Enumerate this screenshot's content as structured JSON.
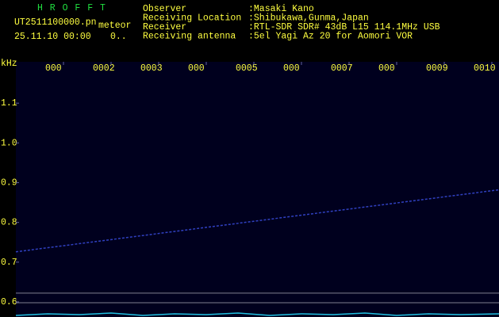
{
  "header": {
    "app": "H R O F F T",
    "file": "UT2511100000.pn",
    "mode": "meteor",
    "time": "25.11.10 00:00",
    "count": "0..",
    "fields": [
      {
        "label": "Observer",
        "value": ":Masaki Kano"
      },
      {
        "label": "Receiving Location",
        "value": ":Shibukawa,Gunma,Japan"
      },
      {
        "label": "Receiver",
        "value": ":RTL-SDR SDR# 43dB L15 114.1MHz USB"
      },
      {
        "label": "Receiving antenna",
        "value": ":5el Yagi Az 20 for Aomori VOR"
      }
    ]
  },
  "chart_data": {
    "type": "spectrogram",
    "y_label": "kHz",
    "ylim": [
      0.562,
      1.204
    ],
    "yticks": [
      0.6,
      0.7,
      0.8,
      0.9,
      {
        "value": 1.0,
        "label": "1.0"
      },
      1.1
    ],
    "xlim": [
      0,
      10.15
    ],
    "xticks": [
      {
        "value": 1,
        "label": "000"
      },
      {
        "value": 2,
        "label": "0002"
      },
      {
        "value": 3,
        "label": "0003"
      },
      {
        "value": 4,
        "label": "000"
      },
      {
        "value": 5,
        "label": "0005"
      },
      {
        "value": 6,
        "label": "000"
      },
      {
        "value": 7,
        "label": "0007"
      },
      {
        "value": 8,
        "label": "000"
      },
      {
        "value": 9,
        "label": "0009"
      },
      {
        "value": 10,
        "label": "0010"
      }
    ],
    "series": [
      {
        "color": "#3040c0",
        "x": [
          0,
          10.15
        ],
        "values": [
          0.726,
          0.882
        ]
      }
    ],
    "reference_lines": [
      0.622,
      0.598
    ]
  }
}
